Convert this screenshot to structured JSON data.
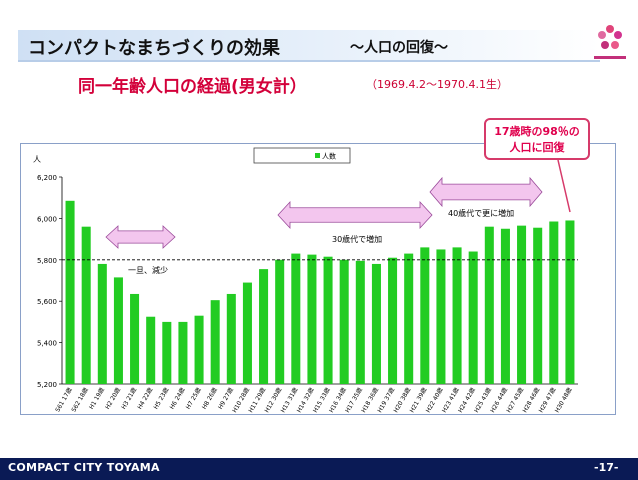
{
  "header": {
    "title": "コンパクトなまちづくりの効果",
    "subtitle": "～人口の回復～"
  },
  "chart_heading": {
    "title": "同一年齢人口の経過(男女計）",
    "range": "（1969.4.2～1970.4.1生）"
  },
  "callout": {
    "line1": "17歳時の98％の",
    "line2": "人口に回復"
  },
  "annotations": {
    "decline": "一旦、減少",
    "increase_30s": "30歳代で増加",
    "increase_40s": "40歳代で更に増加"
  },
  "footer": {
    "left": "COMPACT CITY TOYAMA",
    "right": "-17-"
  },
  "colors": {
    "bar": "#22cc22",
    "arrow_fill": "#f3c6ee",
    "arrow_stroke": "#9a4a9a",
    "footer_bg": "#0a1a55"
  },
  "chart_data": {
    "type": "bar",
    "ylabel": "人",
    "ylim": [
      5200,
      6200
    ],
    "yticks": [
      5200,
      5400,
      5600,
      5800,
      6000,
      6200
    ],
    "reference_line": 5800,
    "legend": "人数",
    "categories": [
      "S61 17歳",
      "S62 18歳",
      "H1 19歳",
      "H2 20歳",
      "H3 21歳",
      "H4 22歳",
      "H5 23歳",
      "H6 24歳",
      "H7 25歳",
      "H8 26歳",
      "H9 27歳",
      "H10 28歳",
      "H11 29歳",
      "H12 30歳",
      "H13 31歳",
      "H14 32歳",
      "H15 33歳",
      "H16 34歳",
      "H17 35歳",
      "H18 36歳",
      "H19 37歳",
      "H20 38歳",
      "H21 39歳",
      "H22 40歳",
      "H23 41歳",
      "H24 42歳",
      "H25 43歳",
      "H26 44歳",
      "H27 45歳",
      "H28 46歳",
      "H29 47歳",
      "H30 48歳"
    ],
    "series": [
      {
        "name": "人数",
        "values": [
          6085,
          5960,
          5780,
          5715,
          5635,
          5525,
          5500,
          5500,
          5530,
          5605,
          5635,
          5690,
          5755,
          5800,
          5830,
          5825,
          5815,
          5800,
          5795,
          5780,
          5810,
          5830,
          5860,
          5850,
          5860,
          5840,
          5960,
          5950,
          5965,
          5955,
          5985,
          5990
        ]
      }
    ]
  }
}
